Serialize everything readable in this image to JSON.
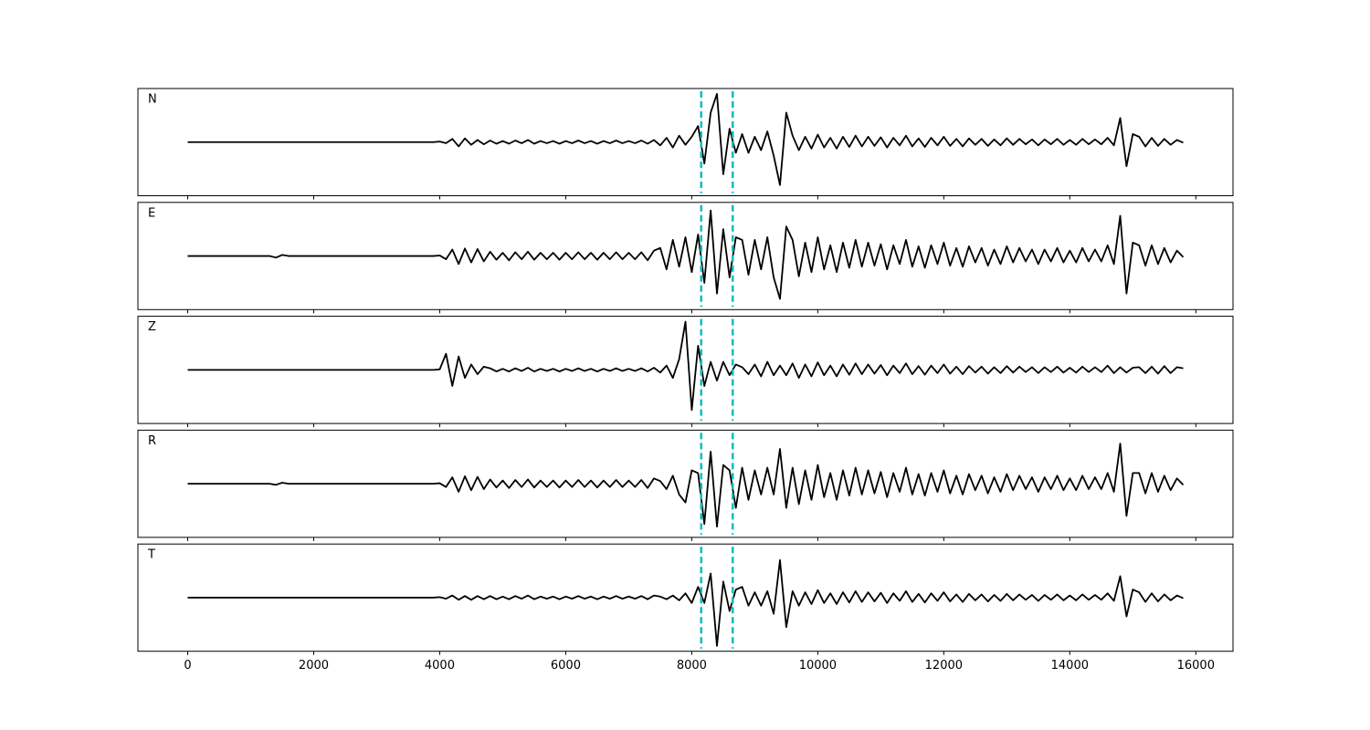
{
  "chart_data": {
    "type": "line",
    "x": [
      0,
      100,
      200,
      300,
      400,
      500,
      600,
      700,
      800,
      900,
      1000,
      1100,
      1200,
      1300,
      1400,
      1500,
      1600,
      1700,
      1800,
      1900,
      2000,
      2100,
      2200,
      2300,
      2400,
      2500,
      2600,
      2700,
      2800,
      2900,
      3000,
      3100,
      3200,
      3300,
      3400,
      3500,
      3600,
      3700,
      3800,
      3900,
      4000,
      4100,
      4200,
      4300,
      4400,
      4500,
      4600,
      4700,
      4800,
      4900,
      5000,
      5100,
      5200,
      5300,
      5400,
      5500,
      5600,
      5700,
      5800,
      5900,
      6000,
      6100,
      6200,
      6300,
      6400,
      6500,
      6600,
      6700,
      6800,
      6900,
      7000,
      7100,
      7200,
      7300,
      7400,
      7500,
      7600,
      7700,
      7800,
      7900,
      8000,
      8100,
      8200,
      8300,
      8400,
      8500,
      8600,
      8700,
      8800,
      8900,
      9000,
      9100,
      9200,
      9300,
      9400,
      9500,
      9600,
      9700,
      9800,
      9900,
      10000,
      10100,
      10200,
      10300,
      10400,
      10500,
      10600,
      10700,
      10800,
      10900,
      11000,
      11100,
      11200,
      11300,
      11400,
      11500,
      11600,
      11700,
      11800,
      11900,
      12000,
      12100,
      12200,
      12300,
      12400,
      12500,
      12600,
      12700,
      12800,
      12900,
      13000,
      13100,
      13200,
      13300,
      13400,
      13500,
      13600,
      13700,
      13800,
      13900,
      14000,
      14100,
      14200,
      14300,
      14400,
      14500,
      14600,
      14700,
      14800,
      14900,
      15000,
      15100,
      15200,
      15300,
      15400,
      15500,
      15600,
      15700,
      15800
    ],
    "xlim": [
      -790,
      16590
    ],
    "xticks": [
      0,
      2000,
      4000,
      6000,
      8000,
      10000,
      12000,
      14000,
      16000
    ],
    "ylim": [
      -1,
      1
    ],
    "vlines": [
      8150,
      8650
    ],
    "vline_color": "#00bfbf",
    "series": [
      {
        "name": "N",
        "color": "#000000",
        "values": [
          0,
          0,
          0,
          0,
          0,
          0,
          0,
          0,
          0,
          0,
          0,
          0,
          0,
          0,
          0,
          0,
          0,
          0,
          0,
          0,
          0,
          0,
          0,
          0,
          0,
          0,
          0,
          0,
          0,
          0,
          0,
          0,
          0,
          0,
          0,
          0,
          0,
          0,
          0,
          0,
          0.01,
          -0.02,
          0.06,
          -0.08,
          0.07,
          -0.05,
          0.04,
          -0.04,
          0.03,
          -0.03,
          0.02,
          -0.03,
          0.03,
          -0.02,
          0.04,
          -0.03,
          0.02,
          -0.02,
          0.02,
          -0.03,
          0.02,
          -0.02,
          0.03,
          -0.02,
          0.02,
          -0.03,
          0.02,
          -0.02,
          0.03,
          -0.02,
          0.02,
          -0.02,
          0.03,
          -0.03,
          0.04,
          -0.06,
          0.08,
          -0.1,
          0.12,
          -0.05,
          0.1,
          0.3,
          -0.4,
          0.55,
          0.9,
          -0.6,
          0.25,
          -0.2,
          0.15,
          -0.2,
          0.1,
          -0.15,
          0.2,
          -0.25,
          -0.8,
          0.55,
          0.12,
          -0.15,
          0.1,
          -0.12,
          0.14,
          -0.1,
          0.08,
          -0.12,
          0.1,
          -0.09,
          0.12,
          -0.08,
          0.1,
          -0.07,
          0.09,
          -0.1,
          0.08,
          -0.06,
          0.12,
          -0.08,
          0.07,
          -0.09,
          0.08,
          -0.06,
          0.1,
          -0.07,
          0.06,
          -0.08,
          0.07,
          -0.05,
          0.06,
          -0.07,
          0.05,
          -0.06,
          0.07,
          -0.05,
          0.06,
          -0.04,
          0.05,
          -0.06,
          0.05,
          -0.04,
          0.06,
          -0.05,
          0.04,
          -0.05,
          0.06,
          -0.04,
          0.05,
          -0.04,
          0.08,
          -0.06,
          0.45,
          -0.45,
          0.15,
          0.1,
          -0.08,
          0.08,
          -0.07,
          0.06,
          -0.05,
          0.04,
          -0.01
        ]
      },
      {
        "name": "E",
        "color": "#000000",
        "values": [
          0,
          0,
          0,
          0,
          0,
          0,
          0,
          0,
          0,
          0,
          0,
          0,
          0,
          0,
          -0.03,
          0.02,
          0,
          0,
          0,
          0,
          0,
          0,
          0,
          0,
          0,
          0,
          0,
          0,
          0,
          0,
          0,
          0,
          0,
          0,
          0,
          0,
          0,
          0,
          0,
          0,
          0.01,
          -0.06,
          0.12,
          -0.15,
          0.14,
          -0.12,
          0.13,
          -0.1,
          0.08,
          -0.07,
          0.06,
          -0.08,
          0.07,
          -0.06,
          0.08,
          -0.07,
          0.06,
          -0.06,
          0.06,
          -0.07,
          0.06,
          -0.06,
          0.07,
          -0.06,
          0.06,
          -0.07,
          0.06,
          -0.06,
          0.07,
          -0.06,
          0.06,
          -0.06,
          0.07,
          -0.08,
          0.1,
          0.15,
          -0.25,
          0.3,
          -0.2,
          0.35,
          -0.3,
          0.4,
          -0.5,
          0.85,
          -0.7,
          0.5,
          -0.4,
          0.35,
          0.3,
          -0.35,
          0.3,
          -0.25,
          0.35,
          -0.4,
          -0.8,
          0.55,
          0.3,
          -0.38,
          0.25,
          -0.3,
          0.35,
          -0.25,
          0.2,
          -0.3,
          0.25,
          -0.22,
          0.3,
          -0.2,
          0.25,
          -0.18,
          0.22,
          -0.25,
          0.2,
          -0.15,
          0.3,
          -0.2,
          0.18,
          -0.22,
          0.2,
          -0.15,
          0.25,
          -0.18,
          0.15,
          -0.2,
          0.18,
          -0.12,
          0.15,
          -0.18,
          0.12,
          -0.15,
          0.18,
          -0.12,
          0.15,
          -0.1,
          0.12,
          -0.15,
          0.12,
          -0.1,
          0.15,
          -0.12,
          0.1,
          -0.12,
          0.15,
          -0.1,
          0.12,
          -0.1,
          0.2,
          -0.15,
          0.75,
          -0.7,
          0.25,
          0.2,
          -0.18,
          0.2,
          -0.15,
          0.15,
          -0.12,
          0.1,
          -0.02
        ]
      },
      {
        "name": "Z",
        "color": "#000000",
        "values": [
          0,
          0,
          0,
          0,
          0,
          0,
          0,
          0,
          0,
          0,
          0,
          0,
          0,
          0,
          0,
          0,
          0,
          0,
          0,
          0,
          0,
          0,
          0,
          0,
          0,
          0,
          0,
          0,
          0,
          0,
          0,
          0,
          0,
          0,
          0,
          0,
          0,
          0,
          0,
          0,
          0.01,
          0.3,
          -0.3,
          0.25,
          -0.15,
          0.1,
          -0.08,
          0.06,
          0.03,
          -0.03,
          0.02,
          -0.03,
          0.03,
          -0.02,
          0.04,
          -0.03,
          0.02,
          -0.02,
          0.02,
          -0.03,
          0.02,
          -0.02,
          0.03,
          -0.02,
          0.02,
          -0.03,
          0.02,
          -0.02,
          0.03,
          -0.02,
          0.02,
          -0.02,
          0.03,
          -0.03,
          0.04,
          -0.05,
          0.08,
          -0.15,
          0.2,
          0.9,
          -0.75,
          0.45,
          -0.3,
          0.15,
          -0.2,
          0.15,
          -0.1,
          0.1,
          0.05,
          -0.08,
          0.1,
          -0.12,
          0.15,
          -0.1,
          0.08,
          -0.1,
          0.12,
          -0.15,
          0.1,
          -0.12,
          0.14,
          -0.1,
          0.08,
          -0.12,
          0.1,
          -0.09,
          0.12,
          -0.08,
          0.1,
          -0.07,
          0.09,
          -0.1,
          0.08,
          -0.06,
          0.12,
          -0.08,
          0.07,
          -0.09,
          0.08,
          -0.06,
          0.1,
          -0.07,
          0.06,
          -0.08,
          0.07,
          -0.05,
          0.06,
          -0.07,
          0.05,
          -0.06,
          0.07,
          -0.05,
          0.06,
          -0.04,
          0.05,
          -0.06,
          0.05,
          -0.04,
          0.06,
          -0.05,
          0.04,
          -0.05,
          0.06,
          -0.04,
          0.05,
          -0.04,
          0.08,
          -0.06,
          0.05,
          -0.05,
          0.04,
          0.05,
          -0.06,
          0.06,
          -0.07,
          0.07,
          -0.06,
          0.05,
          0.03
        ]
      },
      {
        "name": "R",
        "color": "#000000",
        "values": [
          0,
          0,
          0,
          0,
          0,
          0,
          0,
          0,
          0,
          0,
          0,
          0,
          0,
          0,
          -0.02,
          0.02,
          0,
          0,
          0,
          0,
          0,
          0,
          0,
          0,
          0,
          0,
          0,
          0,
          0,
          0,
          0,
          0,
          0,
          0,
          0,
          0,
          0,
          0,
          0,
          0,
          0.01,
          -0.06,
          0.12,
          -0.15,
          0.14,
          -0.12,
          0.13,
          -0.1,
          0.08,
          -0.07,
          0.06,
          -0.08,
          0.07,
          -0.06,
          0.08,
          -0.07,
          0.06,
          -0.06,
          0.06,
          -0.07,
          0.06,
          -0.06,
          0.07,
          -0.06,
          0.06,
          -0.07,
          0.06,
          -0.06,
          0.07,
          -0.06,
          0.06,
          -0.06,
          0.07,
          -0.08,
          0.1,
          0.05,
          -0.1,
          0.15,
          -0.2,
          -0.35,
          0.25,
          0.2,
          -0.75,
          0.6,
          -0.8,
          0.35,
          0.25,
          -0.45,
          0.3,
          -0.3,
          0.25,
          -0.2,
          0.3,
          -0.2,
          0.65,
          -0.45,
          0.3,
          -0.38,
          0.25,
          -0.3,
          0.35,
          -0.25,
          0.2,
          -0.3,
          0.25,
          -0.22,
          0.3,
          -0.2,
          0.25,
          -0.18,
          0.22,
          -0.25,
          0.2,
          -0.15,
          0.3,
          -0.2,
          0.18,
          -0.22,
          0.2,
          -0.15,
          0.25,
          -0.18,
          0.15,
          -0.2,
          0.18,
          -0.12,
          0.15,
          -0.18,
          0.12,
          -0.15,
          0.18,
          -0.12,
          0.15,
          -0.1,
          0.12,
          -0.15,
          0.12,
          -0.1,
          0.15,
          -0.12,
          0.1,
          -0.12,
          0.15,
          -0.1,
          0.12,
          -0.1,
          0.2,
          -0.15,
          0.75,
          -0.6,
          0.2,
          0.2,
          -0.18,
          0.2,
          -0.15,
          0.15,
          -0.12,
          0.1,
          -0.02
        ]
      },
      {
        "name": "T",
        "color": "#000000",
        "values": [
          0,
          0,
          0,
          0,
          0,
          0,
          0,
          0,
          0,
          0,
          0,
          0,
          0,
          0,
          0,
          0,
          0,
          0,
          0,
          0,
          0,
          0,
          0,
          0,
          0,
          0,
          0,
          0,
          0,
          0,
          0,
          0,
          0,
          0,
          0,
          0,
          0,
          0,
          0,
          0,
          0.01,
          -0.02,
          0.04,
          -0.04,
          0.03,
          -0.04,
          0.03,
          -0.03,
          0.03,
          -0.03,
          0.02,
          -0.03,
          0.03,
          -0.02,
          0.04,
          -0.03,
          0.02,
          -0.02,
          0.02,
          -0.03,
          0.02,
          -0.02,
          0.03,
          -0.02,
          0.02,
          -0.03,
          0.02,
          -0.02,
          0.03,
          -0.02,
          0.02,
          -0.02,
          0.03,
          -0.03,
          0.04,
          0.02,
          -0.03,
          0.04,
          -0.05,
          0.08,
          -0.1,
          0.2,
          -0.1,
          0.45,
          -0.9,
          0.3,
          -0.25,
          0.15,
          0.2,
          -0.15,
          0.1,
          -0.15,
          0.12,
          -0.3,
          0.7,
          -0.55,
          0.12,
          -0.15,
          0.1,
          -0.12,
          0.14,
          -0.1,
          0.08,
          -0.12,
          0.1,
          -0.09,
          0.12,
          -0.08,
          0.1,
          -0.07,
          0.09,
          -0.1,
          0.08,
          -0.06,
          0.12,
          -0.08,
          0.07,
          -0.09,
          0.08,
          -0.06,
          0.1,
          -0.07,
          0.06,
          -0.08,
          0.07,
          -0.05,
          0.06,
          -0.07,
          0.05,
          -0.06,
          0.07,
          -0.05,
          0.06,
          -0.04,
          0.05,
          -0.06,
          0.05,
          -0.04,
          0.06,
          -0.05,
          0.04,
          -0.05,
          0.06,
          -0.04,
          0.05,
          -0.04,
          0.08,
          -0.06,
          0.4,
          -0.35,
          0.15,
          0.1,
          -0.08,
          0.08,
          -0.07,
          0.06,
          -0.05,
          0.04,
          -0.01
        ]
      }
    ]
  }
}
